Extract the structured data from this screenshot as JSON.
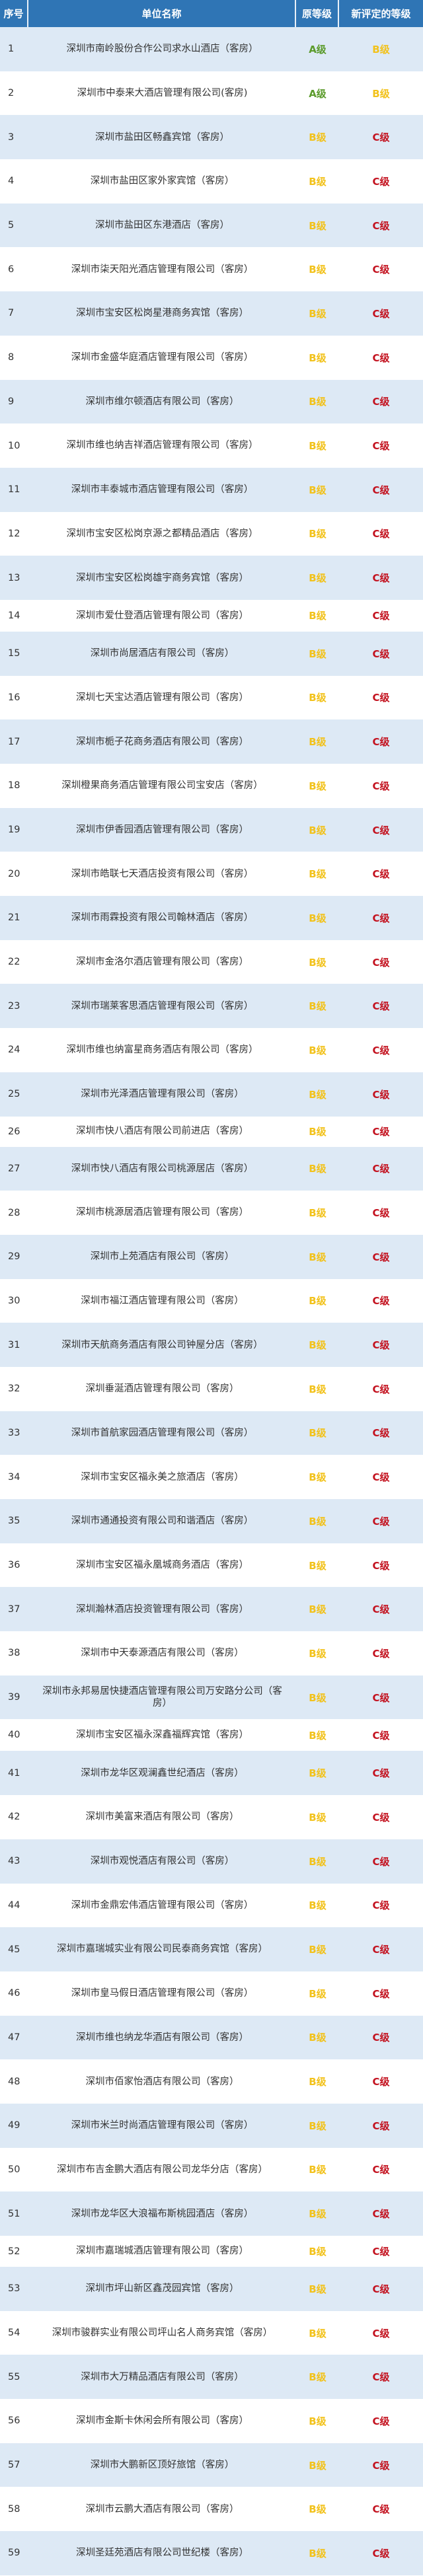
{
  "header": {
    "no": "序号",
    "name": "单位名称",
    "old_grade": "原等级",
    "new_grade": "新评定的等级"
  },
  "grade_colors": {
    "A级": "#5b9b2b",
    "B级": "#f2c21b",
    "C级": "#c3121f"
  },
  "rows": [
    {
      "no": "1",
      "name": "深圳市南岭股份合作公司求水山酒店（客房）",
      "old": "A级",
      "new": "B级"
    },
    {
      "no": "2",
      "name": "深圳市中泰来大酒店管理有限公司(客房)",
      "old": "A级",
      "new": "B级"
    },
    {
      "no": "3",
      "name": "深圳市盐田区畅鑫宾馆（客房）",
      "old": "B级",
      "new": "C级"
    },
    {
      "no": "4",
      "name": "深圳市盐田区家外家宾馆（客房）",
      "old": "B级",
      "new": "C级"
    },
    {
      "no": "5",
      "name": "深圳市盐田区东港酒店（客房）",
      "old": "B级",
      "new": "C级"
    },
    {
      "no": "6",
      "name": "深圳市柒天阳光酒店管理有限公司（客房）",
      "old": "B级",
      "new": "C级"
    },
    {
      "no": "7",
      "name": "深圳市宝安区松岗星港商务宾馆（客房）",
      "old": "B级",
      "new": "C级"
    },
    {
      "no": "8",
      "name": "深圳市金盛华庭酒店管理有限公司（客房）",
      "old": "B级",
      "new": "C级"
    },
    {
      "no": "9",
      "name": "深圳市维尔顿酒店有限公司（客房）",
      "old": "B级",
      "new": "C级"
    },
    {
      "no": "10",
      "name": "深圳市维也纳吉祥酒店管理有限公司（客房）",
      "old": "B级",
      "new": "C级"
    },
    {
      "no": "11",
      "name": "深圳市丰泰城市酒店管理有限公司（客房）",
      "old": "B级",
      "new": "C级"
    },
    {
      "no": "12",
      "name": "深圳市宝安区松岗京源之都精品酒店（客房）",
      "old": "B级",
      "new": "C级"
    },
    {
      "no": "13",
      "name": "深圳市宝安区松岗雄宇商务宾馆（客房）",
      "old": "B级",
      "new": "C级"
    },
    {
      "no": "14",
      "name": "深圳市爱仕登酒店管理有限公司（客房）",
      "old": "B级",
      "new": "C级"
    },
    {
      "no": "15",
      "name": "深圳市尚居酒店有限公司（客房）",
      "old": "B级",
      "new": "C级"
    },
    {
      "no": "16",
      "name": "深圳七天宝达酒店管理有限公司（客房）",
      "old": "B级",
      "new": "C级"
    },
    {
      "no": "17",
      "name": "深圳市栀子花商务酒店有限公司（客房）",
      "old": "B级",
      "new": "C级"
    },
    {
      "no": "18",
      "name": "深圳橙果商务酒店管理有限公司宝安店（客房）",
      "old": "B级",
      "new": "C级"
    },
    {
      "no": "19",
      "name": "深圳市伊香园酒店管理有限公司（客房）",
      "old": "B级",
      "new": "C级"
    },
    {
      "no": "20",
      "name": "深圳市皓联七天酒店投资有限公司（客房）",
      "old": "B级",
      "new": "C级"
    },
    {
      "no": "21",
      "name": "深圳市雨霖投资有限公司翰林酒店（客房）",
      "old": "B级",
      "new": "C级"
    },
    {
      "no": "22",
      "name": "深圳市金洛尔酒店管理有限公司（客房）",
      "old": "B级",
      "new": "C级"
    },
    {
      "no": "23",
      "name": "深圳市瑞莱客思酒店管理有限公司（客房）",
      "old": "B级",
      "new": "C级"
    },
    {
      "no": "24",
      "name": "深圳市维也纳富星商务酒店有限公司（客房）",
      "old": "B级",
      "new": "C级"
    },
    {
      "no": "25",
      "name": "深圳市光泽酒店管理有限公司（客房）",
      "old": "B级",
      "new": "C级"
    },
    {
      "no": "26",
      "name": "深圳市快八酒店有限公司前进店（客房）",
      "old": "B级",
      "new": "C级"
    },
    {
      "no": "27",
      "name": "深圳市快八酒店有限公司桃源居店（客房）",
      "old": "B级",
      "new": "C级"
    },
    {
      "no": "28",
      "name": "深圳市桃源居酒店管理有限公司（客房）",
      "old": "B级",
      "new": "C级"
    },
    {
      "no": "29",
      "name": "深圳市上苑酒店有限公司（客房）",
      "old": "B级",
      "new": "C级"
    },
    {
      "no": "30",
      "name": "深圳市福江酒店管理有限公司（客房）",
      "old": "B级",
      "new": "C级"
    },
    {
      "no": "31",
      "name": "深圳市天航商务酒店有限公司钟屋分店（客房）",
      "old": "B级",
      "new": "C级"
    },
    {
      "no": "32",
      "name": "深圳垂涎酒店管理有限公司（客房）",
      "old": "B级",
      "new": "C级"
    },
    {
      "no": "33",
      "name": "深圳市首航家园酒店管理有限公司（客房）",
      "old": "B级",
      "new": "C级"
    },
    {
      "no": "34",
      "name": "深圳市宝安区福永美之旅酒店（客房）",
      "old": "B级",
      "new": "C级"
    },
    {
      "no": "35",
      "name": "深圳市通通投资有限公司和谐酒店（客房）",
      "old": "B级",
      "new": "C级"
    },
    {
      "no": "36",
      "name": "深圳市宝安区福永凰城商务酒店（客房）",
      "old": "B级",
      "new": "C级"
    },
    {
      "no": "37",
      "name": "深圳瀚林酒店投资管理有限公司（客房）",
      "old": "B级",
      "new": "C级"
    },
    {
      "no": "38",
      "name": "深圳市中天泰源酒店有限公司（客房）",
      "old": "B级",
      "new": "C级"
    },
    {
      "no": "39",
      "name": "深圳市永邦易居快捷酒店管理有限公司万安路分公司（客房）",
      "old": "B级",
      "new": "C级"
    },
    {
      "no": "40",
      "name": "深圳市宝安区福永深鑫福辉宾馆（客房）",
      "old": "B级",
      "new": "C级"
    },
    {
      "no": "41",
      "name": "深圳市龙华区观澜鑫世纪酒店（客房）",
      "old": "B级",
      "new": "C级"
    },
    {
      "no": "42",
      "name": "深圳市美富来酒店有限公司（客房）",
      "old": "B级",
      "new": "C级"
    },
    {
      "no": "43",
      "name": "深圳市观悦酒店有限公司（客房）",
      "old": "B级",
      "new": "C级"
    },
    {
      "no": "44",
      "name": "深圳市金鼎宏伟酒店管理有限公司（客房）",
      "old": "B级",
      "new": "C级"
    },
    {
      "no": "45",
      "name": "深圳市嘉瑞城实业有限公司民泰商务宾馆（客房）",
      "old": "B级",
      "new": "C级"
    },
    {
      "no": "46",
      "name": "深圳市皇马假日酒店管理有限公司（客房）",
      "old": "B级",
      "new": "C级"
    },
    {
      "no": "47",
      "name": "深圳市维也纳龙华酒店有限公司（客房）",
      "old": "B级",
      "new": "C级"
    },
    {
      "no": "48",
      "name": "深圳市佰家怡酒店有限公司（客房）",
      "old": "B级",
      "new": "C级"
    },
    {
      "no": "49",
      "name": "深圳市米兰时尚酒店管理有限公司（客房）",
      "old": "B级",
      "new": "C级"
    },
    {
      "no": "50",
      "name": "深圳市布吉金鹏大酒店有限公司龙华分店（客房）",
      "old": "B级",
      "new": "C级"
    },
    {
      "no": "51",
      "name": "深圳市龙华区大浪福布斯桃园酒店（客房）",
      "old": "B级",
      "new": "C级"
    },
    {
      "no": "52",
      "name": "深圳市嘉瑞城酒店管理有限公司（客房）",
      "old": "B级",
      "new": "C级"
    },
    {
      "no": "53",
      "name": "深圳市坪山新区鑫茂园宾馆（客房）",
      "old": "B级",
      "new": "C级"
    },
    {
      "no": "54",
      "name": "深圳市骏群实业有限公司坪山名人商务宾馆（客房）",
      "old": "B级",
      "new": "C级"
    },
    {
      "no": "55",
      "name": "深圳市大万精品酒店有限公司（客房）",
      "old": "B级",
      "new": "C级"
    },
    {
      "no": "56",
      "name": "深圳市金斯卡休闲会所有限公司（客房）",
      "old": "B级",
      "new": "C级"
    },
    {
      "no": "57",
      "name": "深圳市大鹏新区顶好旅馆（客房）",
      "old": "B级",
      "new": "C级"
    },
    {
      "no": "58",
      "name": "深圳市云鹏大酒店有限公司（客房）",
      "old": "B级",
      "new": "C级"
    },
    {
      "no": "59",
      "name": "深圳圣廷苑酒店有限公司世纪楼（客房）",
      "old": "B级",
      "new": "C级"
    }
  ]
}
